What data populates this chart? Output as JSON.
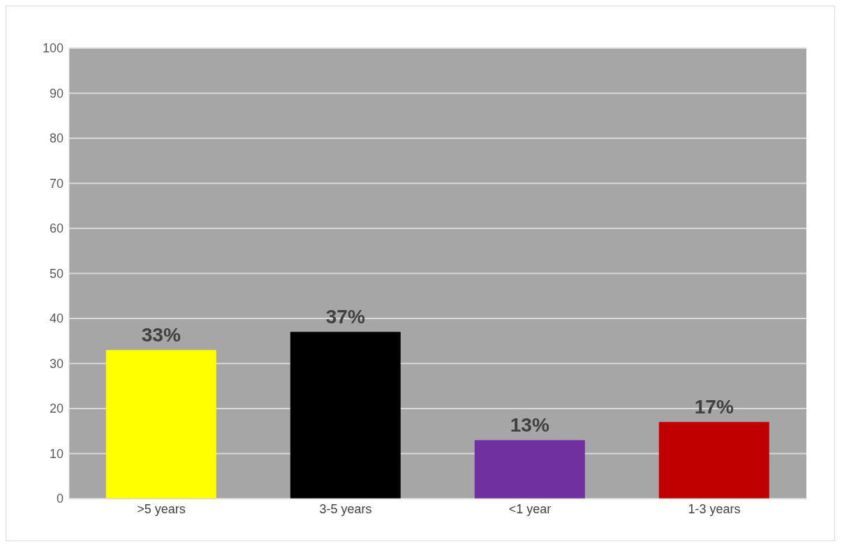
{
  "chart_data": {
    "type": "bar",
    "categories": [
      ">5 years",
      "3-5 years",
      "<1 year",
      "1-3 years"
    ],
    "values": [
      33,
      37,
      13,
      17
    ],
    "colors": [
      "#ffff00",
      "#000000",
      "#7030a0",
      "#c00000"
    ],
    "value_labels": [
      "33%",
      "37%",
      "13%",
      "17%"
    ],
    "ylim": [
      0,
      100
    ],
    "yticks": [
      0,
      10,
      20,
      30,
      40,
      50,
      60,
      70,
      80,
      90,
      100
    ],
    "grid": "y"
  }
}
